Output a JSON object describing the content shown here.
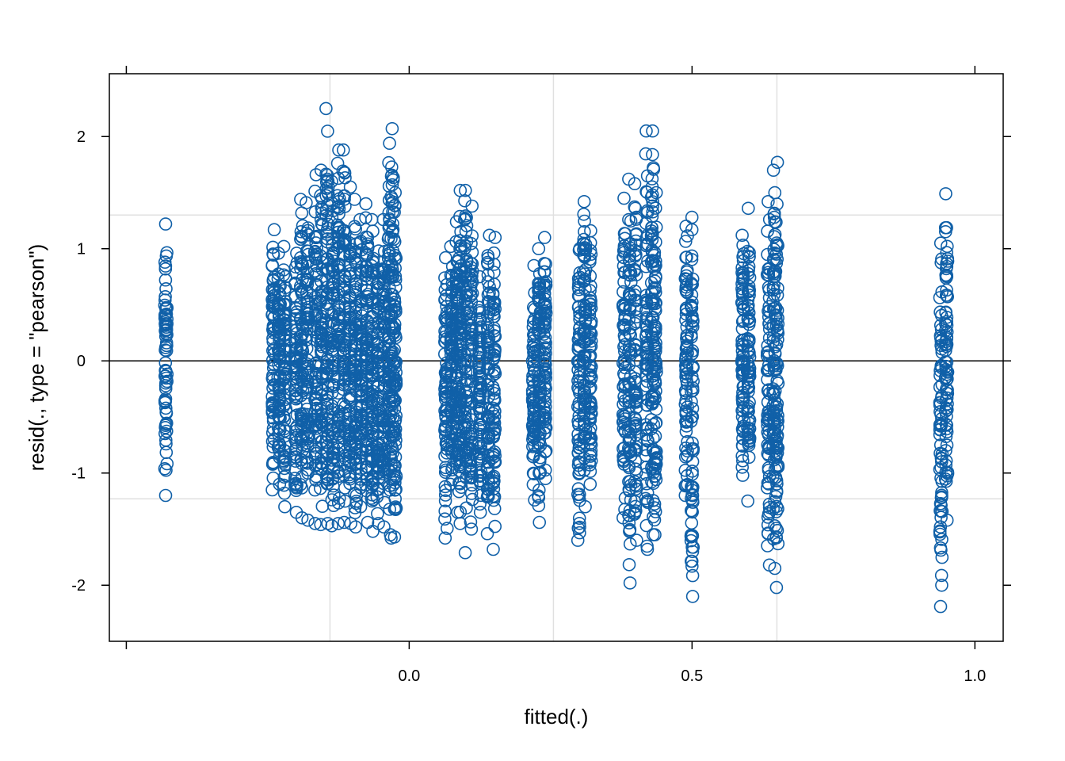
{
  "chart_data": {
    "type": "scatter",
    "xlabel": "fitted(.)",
    "ylabel": "resid(., type = \"pearson\")",
    "xlim": [
      -0.53,
      1.05
    ],
    "ylim": [
      -2.5,
      2.56
    ],
    "x_ticks": [
      -0.5,
      0.0,
      0.5,
      1.0
    ],
    "x_tick_labels": [
      "",
      "0.0",
      "0.5",
      "1.0"
    ],
    "y_ticks": [
      -2,
      -1,
      0,
      1,
      2
    ],
    "y_tick_labels": [
      "-2",
      "-1",
      "0",
      "1",
      "2"
    ],
    "reference_lines": {
      "horizontal": [
        0
      ],
      "gridlines_x": [
        -0.14,
        0.255,
        0.65
      ],
      "gridlines_y": [
        -1.23,
        1.3
      ]
    },
    "marker": "open-circle",
    "colors": {
      "points": "#1060a8",
      "grid": "#e0e0e0",
      "zero_line": "#000000"
    },
    "columns": [
      {
        "x": -0.43,
        "ymin": -1.2,
        "ymax": 1.22
      },
      {
        "x": -0.24,
        "ymin": -1.15,
        "ymax": 1.17
      },
      {
        "x": -0.23,
        "ymin": -1.1,
        "ymax": 0.96
      },
      {
        "x": -0.22,
        "ymin": -1.3,
        "ymax": 1.02
      },
      {
        "x": -0.2,
        "ymin": -1.35,
        "ymax": 0.96
      },
      {
        "x": -0.19,
        "ymin": -1.4,
        "ymax": 1.44
      },
      {
        "x": -0.18,
        "ymin": -1.42,
        "ymax": 1.41
      },
      {
        "x": -0.165,
        "ymin": -1.45,
        "ymax": 1.66
      },
      {
        "x": -0.155,
        "ymin": -1.46,
        "ymax": 1.7
      },
      {
        "x": -0.145,
        "ymin": -1.45,
        "ymax": 2.25
      },
      {
        "x": -0.135,
        "ymin": -1.47,
        "ymax": 1.6
      },
      {
        "x": -0.125,
        "ymin": -1.45,
        "ymax": 1.88
      },
      {
        "x": -0.115,
        "ymin": -1.44,
        "ymax": 1.88
      },
      {
        "x": -0.105,
        "ymin": -1.45,
        "ymax": 1.55
      },
      {
        "x": -0.095,
        "ymin": -1.48,
        "ymax": 1.44
      },
      {
        "x": -0.085,
        "ymin": -1.3,
        "ymax": 1.26
      },
      {
        "x": -0.075,
        "ymin": -1.44,
        "ymax": 1.4
      },
      {
        "x": -0.065,
        "ymin": -1.52,
        "ymax": 1.26
      },
      {
        "x": -0.055,
        "ymin": -1.45,
        "ymax": 0.98
      },
      {
        "x": -0.045,
        "ymin": -1.48,
        "ymax": 1.26
      },
      {
        "x": -0.035,
        "ymin": -1.55,
        "ymax": 1.94
      },
      {
        "x": -0.03,
        "ymin": -1.58,
        "ymax": 2.07
      },
      {
        "x": -0.025,
        "ymin": -1.57,
        "ymax": 1.5
      },
      {
        "x": 0.065,
        "ymin": -1.58,
        "ymax": 0.92
      },
      {
        "x": 0.075,
        "ymin": -1.1,
        "ymax": 1.02
      },
      {
        "x": 0.085,
        "ymin": -1.35,
        "ymax": 1.24
      },
      {
        "x": 0.09,
        "ymin": -1.45,
        "ymax": 1.52
      },
      {
        "x": 0.1,
        "ymin": -1.71,
        "ymax": 1.52
      },
      {
        "x": 0.11,
        "ymin": -1.5,
        "ymax": 1.38
      },
      {
        "x": 0.125,
        "ymin": -1.35,
        "ymax": 0.75
      },
      {
        "x": 0.14,
        "ymin": -1.54,
        "ymax": 1.12
      },
      {
        "x": 0.15,
        "ymin": -1.68,
        "ymax": 1.1
      },
      {
        "x": 0.22,
        "ymin": -1.24,
        "ymax": 0.85
      },
      {
        "x": 0.23,
        "ymin": -1.44,
        "ymax": 1.0
      },
      {
        "x": 0.24,
        "ymin": -1.05,
        "ymax": 1.1
      },
      {
        "x": 0.3,
        "ymin": -1.6,
        "ymax": 1.0
      },
      {
        "x": 0.31,
        "ymin": -1.3,
        "ymax": 1.42
      },
      {
        "x": 0.32,
        "ymin": -1.1,
        "ymax": 1.16
      },
      {
        "x": 0.38,
        "ymin": -1.4,
        "ymax": 1.45
      },
      {
        "x": 0.39,
        "ymin": -1.98,
        "ymax": 1.62
      },
      {
        "x": 0.4,
        "ymin": -1.6,
        "ymax": 1.58
      },
      {
        "x": 0.42,
        "ymin": -1.68,
        "ymax": 2.05
      },
      {
        "x": 0.43,
        "ymin": -1.55,
        "ymax": 2.05
      },
      {
        "x": 0.435,
        "ymin": -1.55,
        "ymax": 1.5
      },
      {
        "x": 0.49,
        "ymin": -1.2,
        "ymax": 1.2
      },
      {
        "x": 0.5,
        "ymin": -2.1,
        "ymax": 1.28
      },
      {
        "x": 0.59,
        "ymin": -1.02,
        "ymax": 1.12
      },
      {
        "x": 0.6,
        "ymin": -1.25,
        "ymax": 1.36
      },
      {
        "x": 0.635,
        "ymin": -1.82,
        "ymax": 1.42
      },
      {
        "x": 0.645,
        "ymin": -1.85,
        "ymax": 1.7
      },
      {
        "x": 0.65,
        "ymin": -2.02,
        "ymax": 1.77
      },
      {
        "x": 0.94,
        "ymin": -2.19,
        "ymax": 1.05
      },
      {
        "x": 0.95,
        "ymin": -1.42,
        "ymax": 1.49
      }
    ]
  }
}
